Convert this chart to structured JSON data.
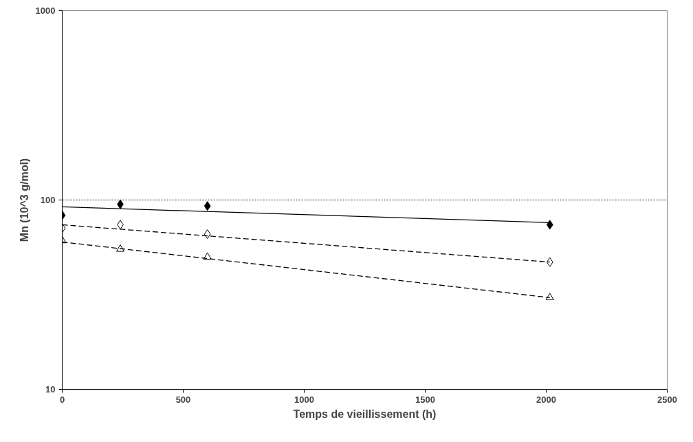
{
  "chart_data": {
    "type": "scatter",
    "xlabel": "Temps de vieillissement (h)",
    "ylabel": "Mn (10^3 g/mol)",
    "xlim": [
      0,
      2500
    ],
    "xticks": [
      0,
      500,
      1000,
      1500,
      2000,
      2500
    ],
    "ylim": [
      10,
      1000
    ],
    "yticks": [
      10,
      100,
      1000
    ],
    "log": true,
    "grid": false,
    "ref_lines": [
      {
        "axis": "y",
        "value": 100,
        "label": null,
        "color": "#000000",
        "line_style": "dotted"
      }
    ],
    "series": [
      {
        "marker": "diamond",
        "color": "#000000",
        "x": [
          0,
          240,
          600,
          2015
        ],
        "values": [
          83,
          95,
          93,
          74
        ]
      },
      {
        "marker": "diamond",
        "color": "#ffffff",
        "x": [
          0,
          240,
          600,
          2015
        ],
        "values": [
          71,
          74,
          66,
          47
        ]
      },
      {
        "marker": "triangle",
        "color": "#ffffff",
        "x": [
          0,
          240,
          600,
          2015
        ],
        "values": [
          61,
          55,
          50,
          30.5
        ]
      },
      {
        "type": "line",
        "line_style": "solid",
        "color": "#000000",
        "x": [
          0,
          2015
        ],
        "values": [
          92,
          76
        ]
      },
      {
        "type": "line",
        "line_style": "dashed",
        "color": "#000000",
        "x": [
          0,
          2015
        ],
        "values": [
          74,
          47
        ]
      },
      {
        "type": "line",
        "line_style": "dashed",
        "color": "#000000",
        "x": [
          0,
          2015
        ],
        "values": [
          60,
          30.5
        ]
      }
    ]
  }
}
